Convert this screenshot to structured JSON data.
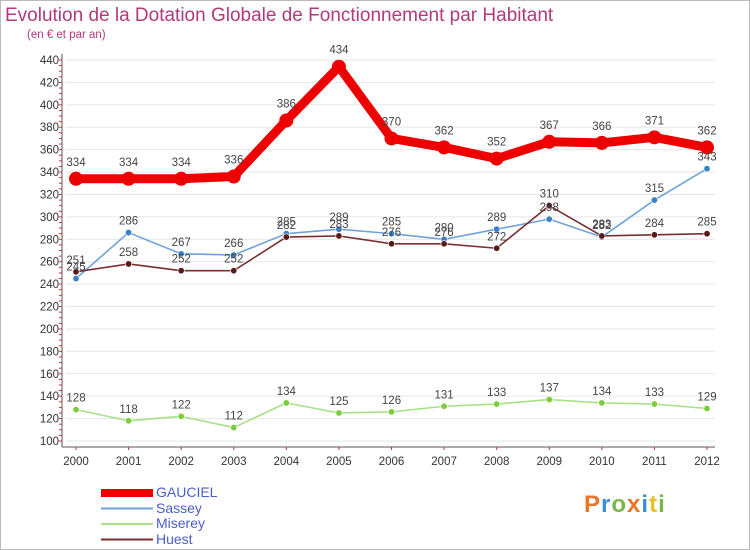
{
  "title": "Evolution de la Dotation Globale de Fonctionnement par Habitant",
  "subtitle": "(en € et par an)",
  "logo": {
    "text": "Proxiti",
    "colors": [
      "#e8762b",
      "#3a8fd4",
      "#7ab648",
      "#e8762b",
      "#3a8fd4",
      "#e8c12b",
      "#7ab648"
    ]
  },
  "chart_data": {
    "type": "line",
    "title": "Evolution de la Dotation Globale de Fonctionnement par Habitant",
    "subtitle": "(en € et par an)",
    "xlabel": "",
    "ylabel": "",
    "x": [
      2000,
      2001,
      2002,
      2003,
      2004,
      2005,
      2006,
      2007,
      2008,
      2009,
      2010,
      2011,
      2012
    ],
    "ylim": [
      100,
      440
    ],
    "yticks": [
      100,
      120,
      140,
      160,
      180,
      200,
      220,
      240,
      260,
      280,
      300,
      320,
      340,
      360,
      380,
      400,
      420,
      440
    ],
    "grid": "horizontal",
    "legend_position": "bottom-left",
    "series": [
      {
        "name": "GAUCIEL",
        "color": "#ee0000",
        "marker_color": "#ee0000",
        "width": 9,
        "values": [
          334,
          334,
          334,
          336,
          386,
          434,
          370,
          362,
          352,
          367,
          366,
          371,
          362
        ]
      },
      {
        "name": "Sassey",
        "color": "#6fa3d6",
        "marker_color": "#3b7fc4",
        "width": 1.6,
        "values": [
          245,
          286,
          267,
          266,
          285,
          289,
          285,
          280,
          289,
          298,
          282,
          315,
          343
        ]
      },
      {
        "name": "Miserey",
        "color": "#a8e08a",
        "marker_color": "#7ccd3c",
        "width": 1.6,
        "values": [
          128,
          118,
          122,
          112,
          134,
          125,
          126,
          131,
          133,
          137,
          134,
          133,
          129
        ]
      },
      {
        "name": "Huest",
        "color": "#7a3030",
        "marker_color": "#5a1a1a",
        "width": 1.6,
        "values": [
          251,
          258,
          252,
          252,
          282,
          283,
          276,
          276,
          272,
          310,
          283,
          284,
          285
        ]
      }
    ]
  }
}
